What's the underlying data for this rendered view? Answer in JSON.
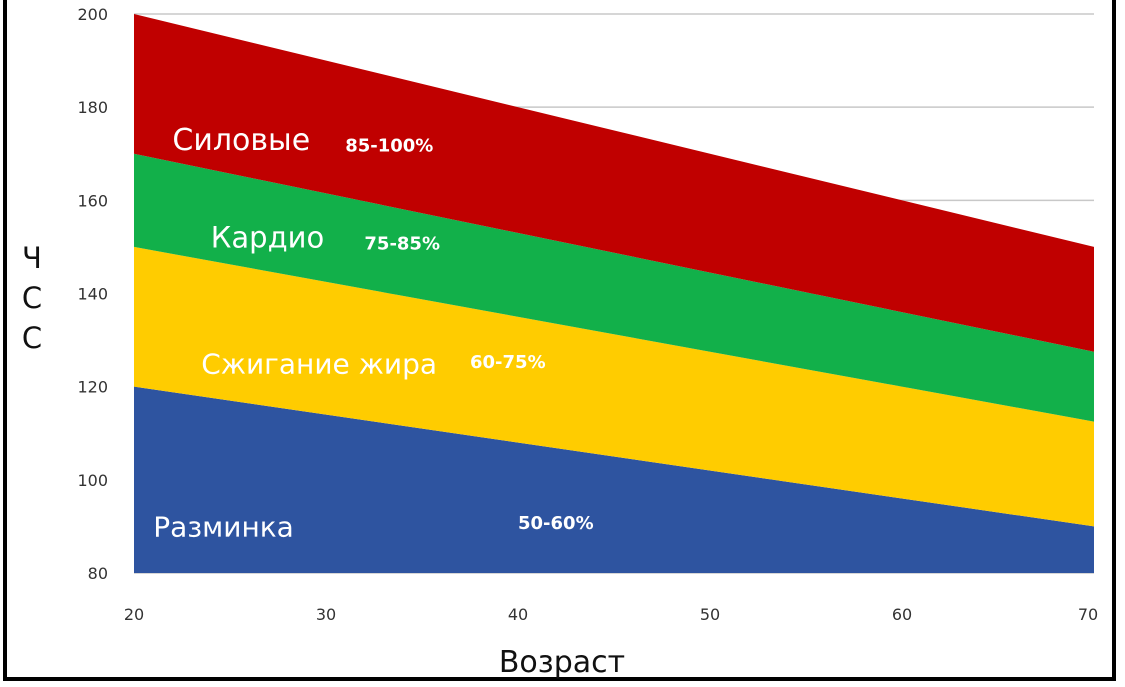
{
  "chart_data": {
    "type": "area",
    "title": "",
    "xlabel": "Возраст",
    "ylabel": "ЧСС",
    "xlim": [
      20,
      70
    ],
    "ylim": [
      80,
      200
    ],
    "xticks": [
      20,
      30,
      40,
      50,
      60,
      70
    ],
    "yticks": [
      80,
      100,
      120,
      140,
      160,
      180,
      200
    ],
    "grid": "horizontal",
    "legend": "none",
    "x": [
      20,
      70
    ],
    "bands": [
      {
        "name": "Разминка",
        "percent": "50-60%",
        "color": "#2e54a0",
        "lower": [
          80,
          80
        ],
        "upper": [
          120,
          90
        ]
      },
      {
        "name": "Сжигание жира",
        "percent": "60-75%",
        "color": "#ffcc00",
        "lower": [
          120,
          90
        ],
        "upper": [
          150,
          112.5
        ]
      },
      {
        "name": "Кардио",
        "percent": "75-85%",
        "color": "#12b04a",
        "lower": [
          150,
          112.5
        ],
        "upper": [
          170,
          127.5
        ]
      },
      {
        "name": "Силовые",
        "percent": "85-100%",
        "color": "#c00000",
        "lower": [
          170,
          127.5
        ],
        "upper": [
          200,
          150
        ]
      }
    ]
  }
}
